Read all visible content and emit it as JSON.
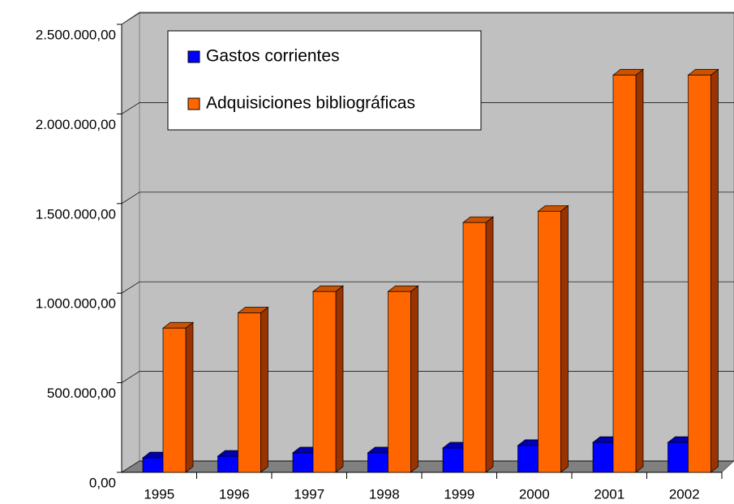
{
  "chart_data": {
    "type": "bar3d",
    "categories": [
      "1995",
      "1996",
      "1997",
      "1998",
      "1999",
      "2000",
      "2001",
      "2002"
    ],
    "series": [
      {
        "name": "Gastos corrientes",
        "color": "#0000ff",
        "values": [
          81000,
          90000,
          109000,
          109000,
          136000,
          150000,
          167000,
          167000
        ]
      },
      {
        "name": "Adquisiciones bibliográficas",
        "color": "#ff6600",
        "values": [
          805000,
          890000,
          1009000,
          1009000,
          1394000,
          1457000,
          2217000,
          2217000
        ]
      }
    ],
    "ylim": [
      0,
      2500000
    ],
    "yticks": [
      {
        "value": 0,
        "label": "0,00"
      },
      {
        "value": 500000,
        "label": "500.000,00"
      },
      {
        "value": 1000000,
        "label": "1.000.000,00"
      },
      {
        "value": 1500000,
        "label": "1.500.000,00"
      },
      {
        "value": 2000000,
        "label": "2.000.000,00"
      },
      {
        "value": 2500000,
        "label": "2.500.000,00"
      }
    ],
    "grid": true
  }
}
